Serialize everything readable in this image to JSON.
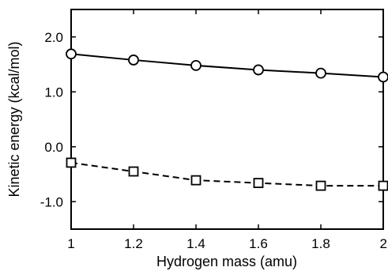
{
  "chart_data": {
    "type": "line",
    "title": "",
    "xlabel": "Hydrogen mass (amu)",
    "ylabel": "Kinetic energy (kcal/mol)",
    "xlim": [
      1,
      2
    ],
    "ylim": [
      -1.5,
      2.5
    ],
    "x": [
      1,
      1.2,
      1.4,
      1.6,
      1.8,
      2
    ],
    "x_ticks": [
      1,
      1.2,
      1.4,
      1.6,
      1.8,
      2
    ],
    "x_tick_labels": [
      "1",
      "1.2",
      "1.4",
      "1.6",
      "1.8",
      "2"
    ],
    "y_ticks": [
      2.0,
      1.0,
      0.0,
      -1.0
    ],
    "y_tick_labels": [
      "2.0",
      "1.0",
      "0.0",
      "-1.0"
    ],
    "grid": false,
    "legend": "none",
    "series": [
      {
        "marker": "circle",
        "line_style": "solid",
        "color": "#000000",
        "values": [
          1.69,
          1.58,
          1.48,
          1.4,
          1.34,
          1.27
        ]
      },
      {
        "marker": "square",
        "line_style": "dashed",
        "color": "#000000",
        "values": [
          -0.29,
          -0.45,
          -0.61,
          -0.66,
          -0.71,
          -0.71
        ]
      }
    ]
  }
}
